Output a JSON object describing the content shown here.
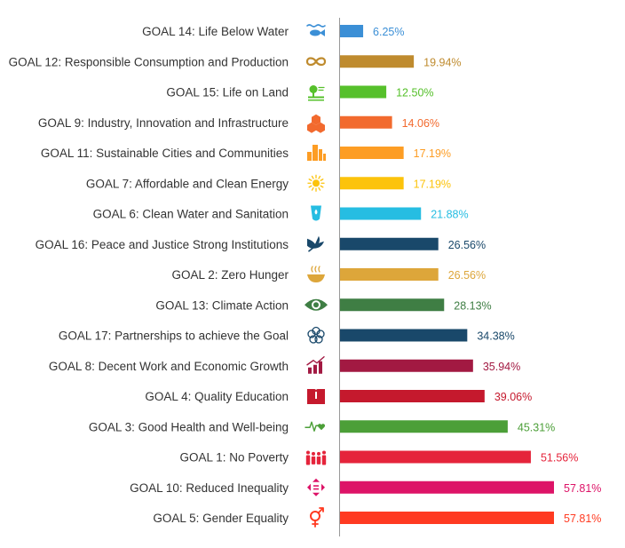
{
  "chart_data": {
    "type": "bar",
    "orientation": "horizontal",
    "title": "",
    "xlabel": "",
    "ylabel": "",
    "xlim": [
      0,
      60
    ],
    "grid": false,
    "legend": "none",
    "categories": [
      "GOAL 14: Life Below Water",
      "GOAL 12: Responsible Consumption and Production",
      "GOAL 15: Life on Land",
      "GOAL 9: Industry, Innovation and Infrastructure",
      "GOAL 11: Sustainable Cities and Communities",
      "GOAL 7: Affordable and Clean Energy",
      "GOAL 6: Clean Water and Sanitation",
      "GOAL 16: Peace and Justice Strong Institutions",
      "GOAL 2: Zero Hunger",
      "GOAL 13: Climate Action",
      "GOAL 17: Partnerships to achieve the Goal",
      "GOAL 8: Decent Work and Economic Growth",
      "GOAL 4: Quality Education",
      "GOAL 3: Good Health and Well-being",
      "GOAL 1: No Poverty",
      "GOAL 10: Reduced Inequality",
      "GOAL 5: Gender Equality"
    ],
    "values": [
      6.25,
      19.94,
      12.5,
      14.06,
      17.19,
      17.19,
      21.88,
      26.56,
      26.56,
      28.13,
      34.38,
      35.94,
      39.06,
      45.31,
      51.56,
      57.81,
      57.81
    ],
    "value_labels": [
      "6.25%",
      "19.94%",
      "12.50%",
      "14.06%",
      "17.19%",
      "17.19%",
      "21.88%",
      "26.56%",
      "26.56%",
      "28.13%",
      "34.38%",
      "35.94%",
      "39.06%",
      "45.31%",
      "51.56%",
      "57.81%",
      "57.81%"
    ],
    "colors": [
      "#3b8fd6",
      "#bf8b2e",
      "#56c02b",
      "#f26a2e",
      "#fd9d24",
      "#fcc30b",
      "#26bde2",
      "#19486a",
      "#dda63a",
      "#3f7e44",
      "#19486a",
      "#a21942",
      "#c5192d",
      "#4c9f38",
      "#e5243b",
      "#dd1367",
      "#ff3a21"
    ],
    "icons": [
      "fish-waves-icon",
      "infinity-icon",
      "tree-land-icon",
      "cubes-icon",
      "buildings-icon",
      "sun-icon",
      "water-drop-icon",
      "dove-icon",
      "bowl-icon",
      "eye-globe-icon",
      "rings-icon",
      "growth-chart-icon",
      "book-icon",
      "heartbeat-icon",
      "family-icon",
      "equality-arrows-icon",
      "gender-icon"
    ]
  }
}
